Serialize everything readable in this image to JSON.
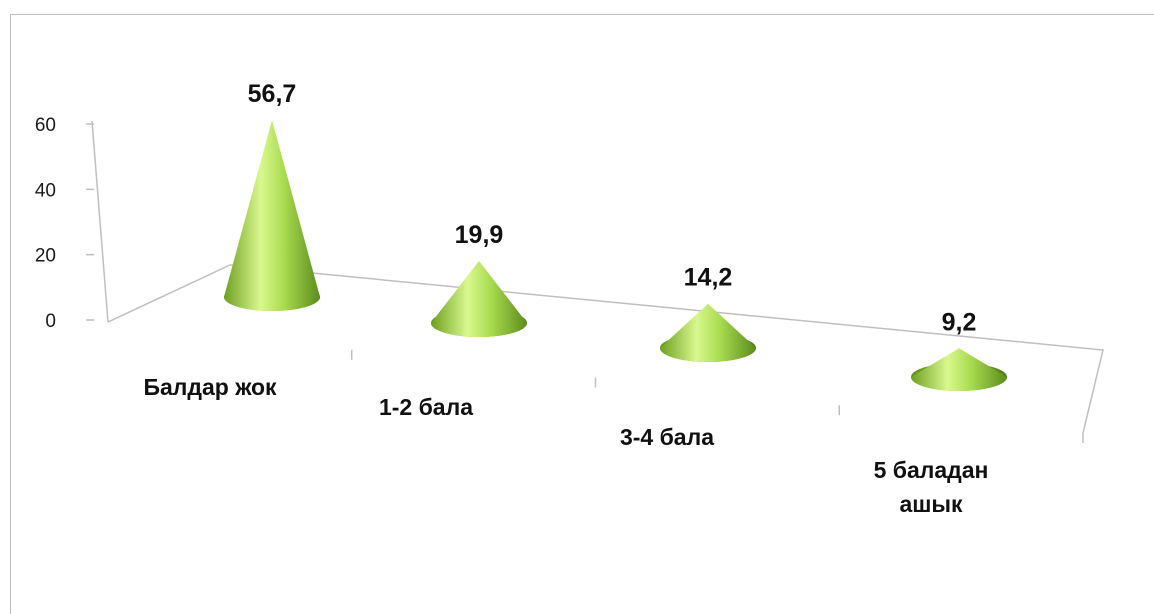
{
  "chart_data": {
    "type": "bar",
    "style": "3d-cone",
    "categories": [
      "Балдар жок",
      "1-2 бала",
      "3-4 бала",
      "5 баладан ашык"
    ],
    "values": [
      56.7,
      19.9,
      14.2,
      9.2
    ],
    "data_labels": [
      "56,7",
      "19,9",
      "14,2",
      "9,2"
    ],
    "y_ticks": [
      0,
      20,
      40,
      60
    ],
    "ylim": [
      0,
      60
    ],
    "title": "",
    "xlabel": "",
    "ylabel": "",
    "grid": false,
    "legend": "none",
    "colors": {
      "cone_light": "#d6f78a",
      "cone_mid": "#9ed145",
      "cone_dark": "#5f8f1e",
      "axis": "#bfbfbf"
    }
  }
}
